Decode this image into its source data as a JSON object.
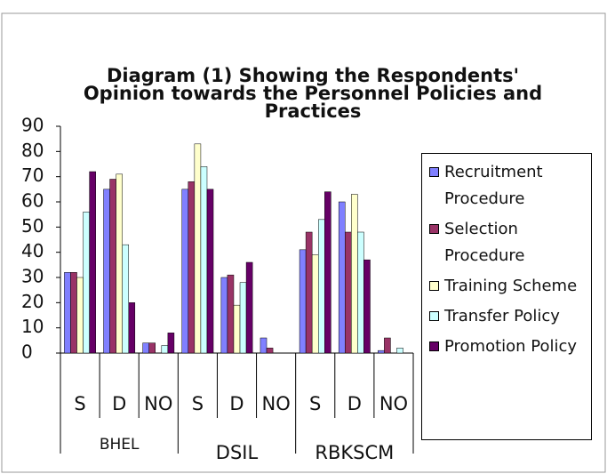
{
  "chart_data": {
    "type": "bar",
    "title": [
      "Diagram (1) Showing the Respondents'",
      "Opinion towards the Personnel Policies and",
      "Practices"
    ],
    "categories": [
      "S",
      "D",
      "NO",
      "S",
      "D",
      "NO",
      "S",
      "D",
      "NO"
    ],
    "groups": [
      "BHEL",
      "DSIL",
      "RBKSCM"
    ],
    "series": [
      {
        "name": "Recruitment Procedure",
        "color": "#8080ff",
        "values": [
          32,
          65,
          4,
          65,
          30,
          6,
          41,
          60,
          1
        ]
      },
      {
        "name": "Selection Procedure",
        "color": "#993366",
        "values": [
          32,
          69,
          4,
          68,
          31,
          2,
          48,
          48,
          6
        ]
      },
      {
        "name": "Training Scheme",
        "color": "#ffffcc",
        "values": [
          30,
          71,
          0,
          83,
          19,
          0,
          39,
          63,
          0
        ]
      },
      {
        "name": "Transfer Policy",
        "color": "#ccffff",
        "values": [
          56,
          43,
          3,
          74,
          28,
          0,
          53,
          48,
          2
        ]
      },
      {
        "name": "Promotion Policy",
        "color": "#660066",
        "values": [
          72,
          20,
          8,
          65,
          36,
          0,
          64,
          37,
          0
        ]
      }
    ],
    "ylim": [
      0,
      90
    ],
    "yticks": [
      0,
      10,
      20,
      30,
      40,
      50,
      60,
      70,
      80,
      90
    ],
    "legend": "right"
  }
}
